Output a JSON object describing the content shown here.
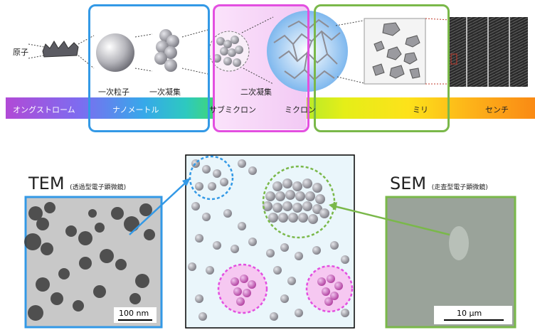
{
  "top": {
    "atom_label": "原子",
    "primary_particle_label": "一次粒子",
    "primary_aggregate_label": "一次凝集",
    "secondary_aggregate_label": "二次凝集"
  },
  "scale_bar": {
    "angstrom": "オングストローム",
    "nanometer": "ナノメートル",
    "submicron": "サブミクロン",
    "micron": "ミクロン",
    "milli": "ミリ",
    "centi": "センチ"
  },
  "tem": {
    "title": "TEM",
    "subtitle": "(透過型電子顕微鏡)",
    "scalebar": "100 nm"
  },
  "sem": {
    "title": "SEM",
    "subtitle": "(走査型電子顕微鏡)",
    "scalebar": "10 µm"
  },
  "colors": {
    "blue": "#3399e6",
    "magenta": "#e34fe0",
    "green": "#7ab84a"
  }
}
